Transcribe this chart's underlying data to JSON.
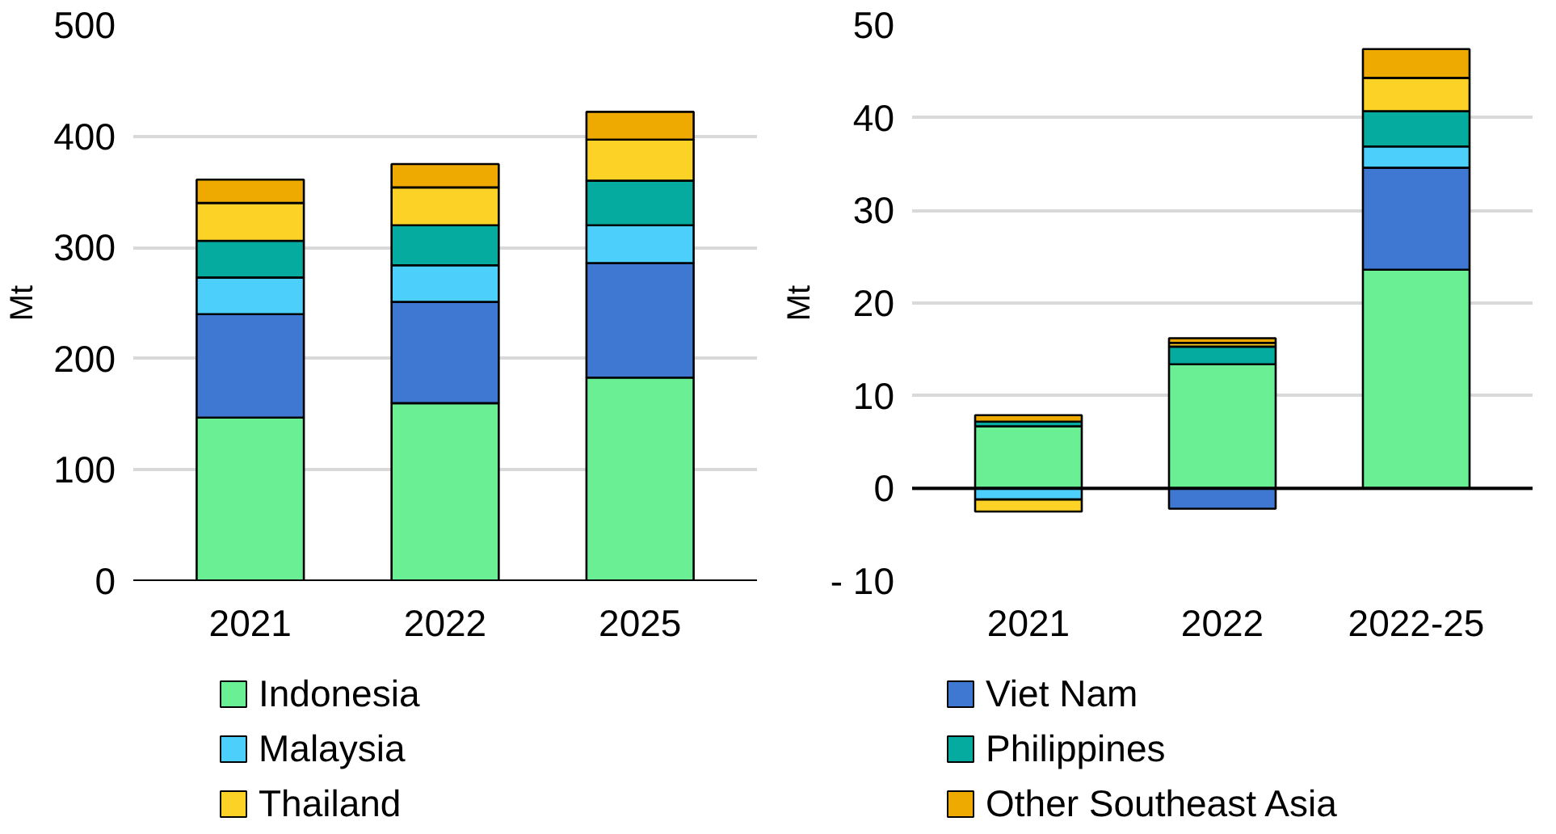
{
  "chart_data": [
    {
      "type": "bar",
      "stacked": true,
      "ylabel": "Mt",
      "categories": [
        "2021",
        "2022",
        "2025"
      ],
      "ylim": [
        0,
        500
      ],
      "yticks": [
        0,
        100,
        200,
        300,
        400,
        500
      ],
      "grid": "y",
      "legend": "bottom",
      "series": [
        {
          "name": "Indonesia",
          "color": "#6aef94",
          "values": [
            147,
            160,
            183
          ]
        },
        {
          "name": "Viet Nam",
          "color": "#3e78d2",
          "values": [
            93,
            91,
            103
          ]
        },
        {
          "name": "Malaysia",
          "color": "#4ccffb",
          "values": [
            33,
            33,
            34
          ]
        },
        {
          "name": "Philippines",
          "color": "#05ab9e",
          "values": [
            33,
            36,
            40
          ]
        },
        {
          "name": "Thailand",
          "color": "#fdd226",
          "values": [
            34,
            34,
            37
          ]
        },
        {
          "name": "Other Southeast Asia",
          "color": "#eeaa00",
          "values": [
            21,
            21,
            25
          ]
        }
      ]
    },
    {
      "type": "bar",
      "stacked": true,
      "ylabel": "Mt",
      "categories": [
        "2021",
        "2022",
        "2022-25"
      ],
      "ylim": [
        -10,
        50
      ],
      "yticks": [
        {
          "value": -10,
          "label": "- 10"
        },
        0,
        10,
        20,
        30,
        40,
        50
      ],
      "grid": "y",
      "series": [
        {
          "color": "#6aef94",
          "values": [
            6.7,
            13.4,
            23.6
          ]
        },
        {
          "color": "#3e78d2",
          "values": [
            null,
            -2.2,
            11.0
          ]
        },
        {
          "color": "#4ccffb",
          "values": [
            -1.2,
            null,
            2.3
          ]
        },
        {
          "color": "#05ab9e",
          "values": [
            0.5,
            1.9,
            3.8
          ]
        },
        {
          "color": "#fdd226",
          "values": [
            -1.3,
            0.4,
            3.6
          ]
        },
        {
          "color": "#eeaa00",
          "values": [
            0.7,
            0.5,
            3.1
          ]
        }
      ]
    }
  ]
}
